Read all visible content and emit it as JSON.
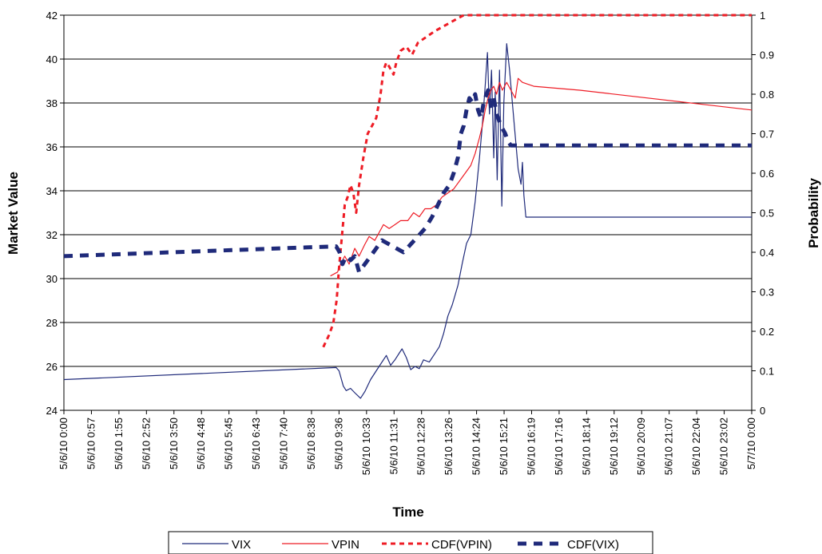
{
  "chart_data": {
    "type": "line",
    "xlabel": "Time",
    "ylabel": "Market Value",
    "y2label": "Probability",
    "ylim": [
      24,
      42
    ],
    "y2lim": [
      0,
      1
    ],
    "grid": true,
    "legend_position": "bottom",
    "x_tick_labels": [
      "5/6/10 0:00",
      "5/6/10 0:57",
      "5/6/10 1:55",
      "5/6/10 2:52",
      "5/6/10 3:50",
      "5/6/10 4:48",
      "5/6/10 5:45",
      "5/6/10 6:43",
      "5/6/10 7:40",
      "5/6/10 8:38",
      "5/6/10 9:36",
      "5/6/10 10:33",
      "5/6/10 11:31",
      "5/6/10 12:28",
      "5/6/10 13:26",
      "5/6/10 14:24",
      "5/6/10 15:21",
      "5/6/10 16:19",
      "5/6/10 17:16",
      "5/6/10 18:14",
      "5/6/10 19:12",
      "5/6/10 20:09",
      "5/6/10 21:07",
      "5/6/10 22:04",
      "5/6/10 23:02",
      "5/7/10 0:00"
    ],
    "y_ticks": [
      24,
      26,
      28,
      30,
      32,
      34,
      36,
      38,
      40,
      42
    ],
    "y2_ticks": [
      "0",
      "0.1",
      "0.2",
      "0.3",
      "0.4",
      "0.5",
      "0.6",
      "0.7",
      "0.8",
      "0.9",
      "1"
    ],
    "series": [
      {
        "name": "VIX",
        "axis": "left",
        "color": "#1f2a7a",
        "dash": "solid",
        "points": [
          [
            0,
            25.4
          ],
          [
            9.5,
            25.95
          ],
          [
            9.6,
            25.8
          ],
          [
            9.75,
            25.1
          ],
          [
            9.85,
            24.9
          ],
          [
            10.0,
            25.0
          ],
          [
            10.15,
            24.8
          ],
          [
            10.35,
            24.55
          ],
          [
            10.5,
            24.85
          ],
          [
            10.7,
            25.4
          ],
          [
            10.9,
            25.8
          ],
          [
            11.1,
            26.2
          ],
          [
            11.25,
            26.5
          ],
          [
            11.4,
            26.05
          ],
          [
            11.55,
            26.3
          ],
          [
            11.7,
            26.6
          ],
          [
            11.8,
            26.8
          ],
          [
            11.95,
            26.4
          ],
          [
            12.1,
            25.85
          ],
          [
            12.25,
            26.0
          ],
          [
            12.4,
            25.9
          ],
          [
            12.55,
            26.3
          ],
          [
            12.75,
            26.2
          ],
          [
            12.9,
            26.5
          ],
          [
            13.1,
            26.9
          ],
          [
            13.25,
            27.5
          ],
          [
            13.4,
            28.3
          ],
          [
            13.55,
            28.8
          ],
          [
            13.75,
            29.7
          ],
          [
            13.9,
            30.7
          ],
          [
            14.05,
            31.6
          ],
          [
            14.2,
            32.0
          ],
          [
            14.35,
            33.5
          ],
          [
            14.5,
            35.5
          ],
          [
            14.6,
            37.0
          ],
          [
            14.7,
            38.8
          ],
          [
            14.78,
            40.3
          ],
          [
            14.85,
            37.5
          ],
          [
            14.92,
            39.5
          ],
          [
            15.0,
            35.5
          ],
          [
            15.05,
            38.5
          ],
          [
            15.12,
            34.5
          ],
          [
            15.2,
            39.5
          ],
          [
            15.28,
            33.3
          ],
          [
            15.35,
            38.0
          ],
          [
            15.45,
            40.7
          ],
          [
            15.55,
            39.5
          ],
          [
            15.65,
            38.0
          ],
          [
            15.75,
            36.5
          ],
          [
            15.85,
            35.0
          ],
          [
            15.95,
            34.3
          ],
          [
            16.0,
            35.3
          ],
          [
            16.05,
            33.8
          ],
          [
            16.12,
            32.8
          ],
          [
            24,
            32.8
          ]
        ]
      },
      {
        "name": "VPIN",
        "axis": "right",
        "color": "#ee1c25",
        "dash": "solid",
        "points": [
          [
            9.3,
            0.34
          ],
          [
            9.55,
            0.35
          ],
          [
            9.65,
            0.37
          ],
          [
            9.8,
            0.39
          ],
          [
            9.95,
            0.37
          ],
          [
            10.15,
            0.41
          ],
          [
            10.3,
            0.39
          ],
          [
            10.5,
            0.42
          ],
          [
            10.65,
            0.44
          ],
          [
            10.85,
            0.43
          ],
          [
            11.0,
            0.45
          ],
          [
            11.15,
            0.47
          ],
          [
            11.35,
            0.46
          ],
          [
            11.55,
            0.47
          ],
          [
            11.75,
            0.48
          ],
          [
            12.0,
            0.48
          ],
          [
            12.2,
            0.5
          ],
          [
            12.4,
            0.49
          ],
          [
            12.6,
            0.51
          ],
          [
            12.8,
            0.51
          ],
          [
            13.0,
            0.52
          ],
          [
            13.2,
            0.54
          ],
          [
            13.4,
            0.55
          ],
          [
            13.6,
            0.56
          ],
          [
            13.8,
            0.58
          ],
          [
            14.0,
            0.6
          ],
          [
            14.2,
            0.62
          ],
          [
            14.35,
            0.65
          ],
          [
            14.5,
            0.69
          ],
          [
            14.6,
            0.72
          ],
          [
            14.7,
            0.76
          ],
          [
            14.8,
            0.79
          ],
          [
            14.9,
            0.81
          ],
          [
            15.0,
            0.82
          ],
          [
            15.1,
            0.8
          ],
          [
            15.2,
            0.83
          ],
          [
            15.3,
            0.81
          ],
          [
            15.45,
            0.83
          ],
          [
            15.6,
            0.81
          ],
          [
            15.75,
            0.79
          ],
          [
            15.85,
            0.84
          ],
          [
            16.0,
            0.83
          ],
          [
            16.4,
            0.82
          ],
          [
            18.0,
            0.81
          ],
          [
            24,
            0.76
          ]
        ]
      },
      {
        "name": "CDF(VPIN)",
        "axis": "right",
        "color": "#ee1c25",
        "dash": "short-dash",
        "points": [
          [
            9.05,
            0.16
          ],
          [
            9.25,
            0.19
          ],
          [
            9.4,
            0.22
          ],
          [
            9.52,
            0.28
          ],
          [
            9.6,
            0.36
          ],
          [
            9.7,
            0.44
          ],
          [
            9.8,
            0.52
          ],
          [
            9.9,
            0.54
          ],
          [
            10.0,
            0.57
          ],
          [
            10.1,
            0.55
          ],
          [
            10.2,
            0.5
          ],
          [
            10.3,
            0.57
          ],
          [
            10.45,
            0.64
          ],
          [
            10.6,
            0.7
          ],
          [
            10.75,
            0.72
          ],
          [
            10.9,
            0.74
          ],
          [
            11.05,
            0.8
          ],
          [
            11.15,
            0.86
          ],
          [
            11.25,
            0.88
          ],
          [
            11.35,
            0.87
          ],
          [
            11.5,
            0.85
          ],
          [
            11.6,
            0.88
          ],
          [
            11.75,
            0.91
          ],
          [
            11.95,
            0.92
          ],
          [
            12.15,
            0.9
          ],
          [
            12.35,
            0.93
          ],
          [
            12.55,
            0.94
          ],
          [
            12.75,
            0.95
          ],
          [
            12.95,
            0.96
          ],
          [
            13.2,
            0.97
          ],
          [
            13.45,
            0.98
          ],
          [
            13.7,
            0.99
          ],
          [
            13.95,
            1.0
          ],
          [
            24,
            1.0
          ]
        ]
      },
      {
        "name": "CDF(VIX)",
        "axis": "right",
        "color": "#1f2a7a",
        "dash": "long-dash-thick",
        "points": [
          [
            0,
            0.39
          ],
          [
            9.5,
            0.415
          ],
          [
            9.62,
            0.4
          ],
          [
            9.72,
            0.37
          ],
          [
            9.85,
            0.39
          ],
          [
            10.0,
            0.38
          ],
          [
            10.15,
            0.39
          ],
          [
            10.3,
            0.35
          ],
          [
            10.5,
            0.37
          ],
          [
            10.7,
            0.39
          ],
          [
            10.9,
            0.41
          ],
          [
            11.1,
            0.43
          ],
          [
            11.35,
            0.42
          ],
          [
            11.6,
            0.41
          ],
          [
            11.85,
            0.4
          ],
          [
            12.1,
            0.42
          ],
          [
            12.35,
            0.44
          ],
          [
            12.6,
            0.46
          ],
          [
            12.85,
            0.49
          ],
          [
            13.05,
            0.52
          ],
          [
            13.25,
            0.55
          ],
          [
            13.45,
            0.57
          ],
          [
            13.6,
            0.6
          ],
          [
            13.75,
            0.64
          ],
          [
            13.85,
            0.7
          ],
          [
            13.95,
            0.72
          ],
          [
            14.05,
            0.76
          ],
          [
            14.15,
            0.79
          ],
          [
            14.25,
            0.78
          ],
          [
            14.35,
            0.8
          ],
          [
            14.45,
            0.76
          ],
          [
            14.55,
            0.74
          ],
          [
            14.65,
            0.78
          ],
          [
            14.8,
            0.81
          ],
          [
            14.9,
            0.77
          ],
          [
            15.0,
            0.79
          ],
          [
            15.1,
            0.75
          ],
          [
            15.25,
            0.72
          ],
          [
            15.4,
            0.7
          ],
          [
            15.5,
            0.68
          ],
          [
            15.6,
            0.67
          ],
          [
            24,
            0.67
          ]
        ]
      }
    ]
  }
}
